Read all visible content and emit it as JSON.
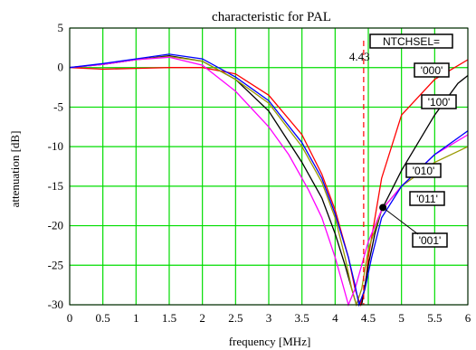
{
  "chart_data": {
    "type": "line",
    "title": "characteristic for PAL",
    "xlabel": "frequency [MHz]",
    "ylabel": "attenuation [dB]",
    "xlim": [
      0,
      6
    ],
    "ylim": [
      -30,
      5
    ],
    "xticks": [
      "0",
      "0.5",
      "1",
      "1.5",
      "2",
      "2.5",
      "3",
      "3.5",
      "4",
      "4.5",
      "5",
      "5.5",
      "6"
    ],
    "yticks": [
      "5",
      "0",
      "-5",
      "-10",
      "-15",
      "-20",
      "-25",
      "-30"
    ],
    "grid": true,
    "grid_color": "#00dd00",
    "marker_line": {
      "x": 4.43,
      "label": "4.43",
      "color": "#ff0000",
      "style": "dashed"
    },
    "legend_title": "NTCHSEL=",
    "series": [
      {
        "name": "'000'",
        "color": "#ff0000",
        "x": [
          0,
          0.5,
          1,
          1.5,
          1.8,
          2,
          2.5,
          3,
          3.5,
          3.8,
          4,
          4.2,
          4.3,
          4.38,
          4.45,
          4.5,
          4.7,
          5,
          5.5,
          6
        ],
        "y": [
          0,
          -0.2,
          -0.1,
          0,
          0,
          0,
          -0.8,
          -3.5,
          -8.5,
          -13.5,
          -18,
          -24,
          -28,
          -30,
          -28,
          -24,
          -14,
          -6,
          -1.5,
          1
        ]
      },
      {
        "name": "'100'",
        "color": "#000000",
        "x": [
          0,
          0.5,
          1,
          1.5,
          2,
          2.5,
          3,
          3.5,
          3.8,
          4,
          4.15,
          4.25,
          4.32,
          4.4,
          4.5,
          4.6,
          4.7,
          5,
          5.5,
          5.85,
          6
        ],
        "y": [
          0,
          0.4,
          1.0,
          1.5,
          0.8,
          -1.5,
          -5.5,
          -12,
          -16.5,
          -21,
          -25,
          -28,
          -30,
          -30,
          -25,
          -21,
          -18,
          -13,
          -6,
          -2,
          -1
        ]
      },
      {
        "name": "'010'",
        "color": "#999900",
        "x": [
          0,
          0.5,
          1,
          1.5,
          2,
          2.5,
          3,
          3.5,
          3.8,
          4,
          4.15,
          4.25,
          4.32,
          4.4,
          4.5,
          4.7,
          5,
          5.5,
          6
        ],
        "y": [
          0,
          0.4,
          1.0,
          1.4,
          0.8,
          -1.5,
          -4.5,
          -10,
          -14.5,
          -19,
          -24,
          -28,
          -30,
          -28,
          -23,
          -18,
          -15,
          -12,
          -10
        ]
      },
      {
        "name": "'011'",
        "color": "#ff00ff",
        "x": [
          0,
          0.5,
          1,
          1.5,
          2,
          2.5,
          3,
          3.3,
          3.6,
          3.8,
          4,
          4.1,
          4.2,
          4.3,
          4.5,
          4.7,
          5,
          5.5,
          6
        ],
        "y": [
          0,
          0.4,
          1.0,
          1.3,
          0.3,
          -3,
          -7.5,
          -11,
          -15.5,
          -19,
          -24,
          -27,
          -30,
          -28,
          -22,
          -18,
          -15,
          -11,
          -8.5
        ]
      },
      {
        "name": "'001'",
        "color": "#0000ff",
        "x": [
          0,
          0.5,
          1,
          1.5,
          2,
          2.5,
          3,
          3.5,
          3.8,
          4,
          4.2,
          4.3,
          4.36,
          4.45,
          4.55,
          4.7,
          5,
          5.5,
          6
        ],
        "y": [
          0,
          0.5,
          1.1,
          1.7,
          1.1,
          -1.2,
          -4.2,
          -9.5,
          -14,
          -18.5,
          -24,
          -27.5,
          -30,
          -28,
          -24,
          -19,
          -15,
          -11,
          -8
        ]
      }
    ],
    "point_marker": {
      "x": 4.72,
      "y": -17.7
    }
  }
}
